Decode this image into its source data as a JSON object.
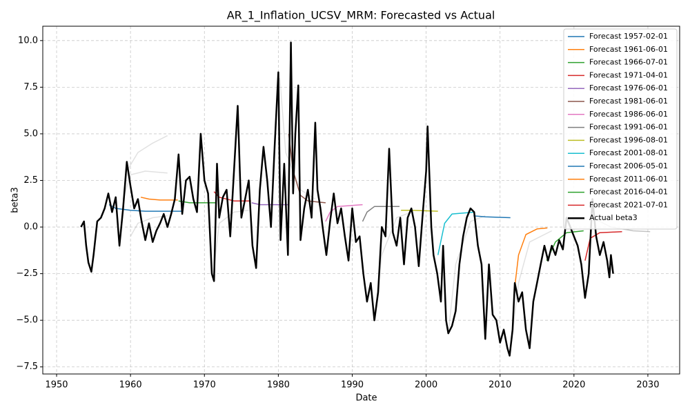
{
  "chart_data": {
    "type": "line",
    "title": "AR_1_Inflation_UCSV_MRM: Forecasted vs Actual",
    "x_label": "Date",
    "y_label": "beta3",
    "xlim": [
      1948.13,
      2034.3
    ],
    "ylim": [
      -7.88,
      10.77
    ],
    "xticks": [
      1950,
      1960,
      1970,
      1980,
      1990,
      2000,
      2010,
      2020,
      2030
    ],
    "yticks": [
      {
        "value": -7.5,
        "label": "−7.5"
      },
      {
        "value": -5,
        "label": "−5.0"
      },
      {
        "value": -2.5,
        "label": "−2.5"
      },
      {
        "value": 0,
        "label": "0.0"
      },
      {
        "value": 2.5,
        "label": "2.5"
      },
      {
        "value": 5,
        "label": "5.0"
      },
      {
        "value": 7.5,
        "label": "7.5"
      },
      {
        "value": 10,
        "label": "10.0"
      }
    ],
    "grid": true,
    "legend_position": "upper right",
    "series": [
      {
        "color": "#aaaaaa",
        "opacity": 0.35,
        "linewidth": 1.5,
        "x": [
          1958.5,
          1959.5,
          1961,
          1963,
          1965
        ],
        "values": [
          -1.2,
          3.0,
          4.0,
          4.5,
          4.9
        ]
      },
      {
        "color": "#aaaaaa",
        "opacity": 0.35,
        "linewidth": 1.5,
        "x": [
          1959,
          1960,
          1962,
          1965
        ],
        "values": [
          1.5,
          2.8,
          3.0,
          2.9
        ]
      },
      {
        "color": "#aaaaaa",
        "opacity": 0.35,
        "linewidth": 1.5,
        "x": [
          1960,
          1961,
          1963,
          1965
        ],
        "values": [
          -0.5,
          0.2,
          0.5,
          0.6
        ]
      },
      {
        "color": "#aaaaaa",
        "opacity": 0.35,
        "linewidth": 1.5,
        "x": [
          1971.2,
          1972,
          1974,
          1976
        ],
        "values": [
          -2.5,
          0.2,
          0.8,
          0.9
        ]
      },
      {
        "color": "#aaaaaa",
        "opacity": 0.35,
        "linewidth": 1.5,
        "x": [
          1980.2,
          1981,
          1983,
          1985
        ],
        "values": [
          8.0,
          4.0,
          2.0,
          1.5
        ]
      },
      {
        "color": "#aaaaaa",
        "opacity": 0.35,
        "linewidth": 1.5,
        "x": [
          1993,
          1994,
          1996,
          1998
        ],
        "values": [
          -5.0,
          -1.5,
          0.5,
          0.8
        ]
      },
      {
        "color": "#aaaaaa",
        "opacity": 0.35,
        "linewidth": 1.5,
        "x": [
          2003,
          2004,
          2006,
          2008
        ],
        "values": [
          -5.7,
          -2.0,
          0.3,
          0.6
        ]
      },
      {
        "color": "#aaaaaa",
        "opacity": 0.35,
        "linewidth": 1.5,
        "x": [
          2011.3,
          2012.5,
          2014,
          2017
        ],
        "values": [
          -6.9,
          -3.0,
          -0.8,
          -0.2
        ]
      },
      {
        "color": "#888888",
        "opacity": 0.5,
        "linewidth": 1.5,
        "x": [
          2022.5,
          2025,
          2028,
          2030.3
        ],
        "values": [
          0.5,
          0.0,
          -0.2,
          -0.25
        ]
      },
      {
        "name": "Forecast 1957-02-01",
        "color": "#1f77b4",
        "linewidth": 1.5,
        "x": [
          1957.1,
          1958,
          1960,
          1962,
          1967
        ],
        "values": [
          1.2,
          1.0,
          0.9,
          0.85,
          0.85
        ]
      },
      {
        "name": "Forecast 1961-06-01",
        "color": "#ff7f0e",
        "linewidth": 1.5,
        "x": [
          1961.4,
          1962.5,
          1964,
          1966.4
        ],
        "values": [
          1.6,
          1.5,
          1.45,
          1.45
        ]
      },
      {
        "name": "Forecast 1966-07-01",
        "color": "#2ca02c",
        "linewidth": 1.5,
        "x": [
          1966.5,
          1968,
          1971.5
        ],
        "values": [
          1.4,
          1.3,
          1.3
        ]
      },
      {
        "name": "Forecast 1971-04-01",
        "color": "#d62728",
        "linewidth": 1.5,
        "x": [
          1971.3,
          1972,
          1974,
          1976.3
        ],
        "values": [
          1.9,
          1.6,
          1.4,
          1.4
        ]
      },
      {
        "name": "Forecast 1976-06-01",
        "color": "#9467bd",
        "linewidth": 1.5,
        "x": [
          1976.4,
          1977.5,
          1981.4
        ],
        "values": [
          1.3,
          1.2,
          1.2
        ]
      },
      {
        "name": "Forecast 1981-06-01",
        "color": "#8c564b",
        "linewidth": 1.5,
        "x": [
          1981.4,
          1982,
          1983,
          1984,
          1986.4
        ],
        "values": [
          5.0,
          3.0,
          1.7,
          1.4,
          1.3
        ]
      },
      {
        "name": "Forecast 1986-06-01",
        "color": "#e377c2",
        "linewidth": 1.5,
        "x": [
          1986.4,
          1987,
          1988,
          1991.4
        ],
        "values": [
          0.3,
          0.8,
          1.1,
          1.2
        ]
      },
      {
        "name": "Forecast 1991-06-01",
        "color": "#7f7f7f",
        "linewidth": 1.5,
        "x": [
          1991.4,
          1992,
          1993,
          1996.4
        ],
        "values": [
          0.3,
          0.8,
          1.1,
          1.1
        ]
      },
      {
        "name": "Forecast 1996-08-01",
        "color": "#bcbd22",
        "linewidth": 1.5,
        "x": [
          1996.6,
          1998,
          2001.6
        ],
        "values": [
          0.9,
          0.9,
          0.85
        ]
      },
      {
        "name": "Forecast 2001-08-01",
        "color": "#17becf",
        "linewidth": 1.5,
        "x": [
          2001.6,
          2002.5,
          2003.5,
          2006.6
        ],
        "values": [
          -1.5,
          0.2,
          0.7,
          0.8
        ]
      },
      {
        "name": "Forecast 2006-05-01",
        "color": "#1f77b4",
        "linewidth": 1.5,
        "x": [
          2006.4,
          2008,
          2011.4
        ],
        "values": [
          0.6,
          0.55,
          0.5
        ]
      },
      {
        "name": "Forecast 2011-06-01",
        "color": "#ff7f0e",
        "linewidth": 1.5,
        "x": [
          2011.9,
          2012.5,
          2013.5,
          2015,
          2016.4
        ],
        "values": [
          -3.5,
          -1.5,
          -0.4,
          -0.1,
          -0.05
        ]
      },
      {
        "name": "Forecast 2016-04-01",
        "color": "#2ca02c",
        "linewidth": 1.5,
        "x": [
          2016.3,
          2017.5,
          2019,
          2021.3
        ],
        "values": [
          -1.8,
          -0.8,
          -0.3,
          -0.2
        ]
      },
      {
        "name": "Forecast 2021-07-01",
        "color": "#d62728",
        "linewidth": 1.5,
        "x": [
          2021.5,
          2022.2,
          2023.5,
          2026.5
        ],
        "values": [
          -1.8,
          -0.6,
          -0.3,
          -0.25
        ]
      },
      {
        "name": "Actual beta3",
        "color": "#000000",
        "linewidth": 2.5,
        "x": [
          1953.3,
          1953.7,
          1954.0,
          1954.3,
          1954.7,
          1955.0,
          1955.5,
          1956.0,
          1956.5,
          1957.0,
          1957.5,
          1958.0,
          1958.5,
          1959.0,
          1959.5,
          1960.0,
          1960.5,
          1961.0,
          1961.5,
          1962.0,
          1962.5,
          1963.0,
          1963.5,
          1964.0,
          1964.5,
          1965.0,
          1965.5,
          1966.0,
          1966.5,
          1967.0,
          1967.5,
          1968.0,
          1968.5,
          1969.0,
          1969.5,
          1970.0,
          1970.5,
          1971.0,
          1971.3,
          1971.7,
          1972.0,
          1972.5,
          1973.0,
          1973.5,
          1974.0,
          1974.5,
          1975.0,
          1975.5,
          1976.0,
          1976.5,
          1977.0,
          1977.5,
          1978.0,
          1978.5,
          1979.0,
          1979.5,
          1980.0,
          1980.3,
          1980.8,
          1981.3,
          1981.7,
          1982.0,
          1982.3,
          1982.7,
          1983.0,
          1983.5,
          1984.0,
          1984.5,
          1985.0,
          1985.3,
          1985.7,
          1986.0,
          1986.5,
          1987.0,
          1987.5,
          1988.0,
          1988.5,
          1989.0,
          1989.5,
          1990.0,
          1990.5,
          1991.0,
          1991.5,
          1992.0,
          1992.5,
          1993.0,
          1993.5,
          1994.0,
          1994.5,
          1995.0,
          1995.5,
          1996.0,
          1996.5,
          1997.0,
          1997.5,
          1998.0,
          1998.5,
          1999.0,
          1999.5,
          2000.0,
          2000.2,
          2000.7,
          2001.0,
          2001.5,
          2002.0,
          2002.3,
          2002.7,
          2003.0,
          2003.5,
          2004.0,
          2004.5,
          2005.0,
          2005.5,
          2006.0,
          2006.5,
          2007.0,
          2007.5,
          2008.0,
          2008.5,
          2009.0,
          2009.5,
          2010.0,
          2010.5,
          2011.0,
          2011.3,
          2011.7,
          2012.0,
          2012.5,
          2013.0,
          2013.5,
          2014.0,
          2014.5,
          2015.0,
          2015.5,
          2016.0,
          2016.5,
          2017.0,
          2017.5,
          2018.0,
          2018.5,
          2019.0,
          2019.5,
          2020.0,
          2020.5,
          2021.0,
          2021.5,
          2022.0,
          2022.5,
          2023.0,
          2023.5,
          2024.0,
          2024.5,
          2024.8,
          2025.0,
          2025.3
        ],
        "values": [
          0,
          0.3,
          -1.0,
          -1.9,
          -2.4,
          -1.5,
          0.3,
          0.5,
          1.0,
          1.8,
          0.8,
          1.6,
          -1.0,
          1.0,
          3.5,
          2.2,
          1.0,
          1.5,
          0.3,
          -0.7,
          0.2,
          -0.8,
          -0.2,
          0.2,
          0.7,
          0,
          0.7,
          1.5,
          3.9,
          0.7,
          2.5,
          2.7,
          1.5,
          0.8,
          5.0,
          2.5,
          1.8,
          -2.5,
          -2.9,
          3.4,
          0.5,
          1.6,
          2.0,
          -0.5,
          3.0,
          6.5,
          0.5,
          1.5,
          2.5,
          -1.0,
          -2.2,
          2.0,
          4.3,
          2.5,
          0,
          4.3,
          8.3,
          -0.7,
          3.4,
          -1.5,
          9.9,
          1.8,
          5.0,
          7.6,
          -0.7,
          1.0,
          2.0,
          0.5,
          5.6,
          2.0,
          1.0,
          0,
          -1.5,
          0.3,
          1.8,
          0.2,
          1.0,
          -0.5,
          -1.8,
          1.0,
          -0.8,
          -0.5,
          -2.5,
          -4.0,
          -3.0,
          -5.0,
          -3.5,
          0,
          -0.5,
          4.2,
          -0.3,
          -1.0,
          0.5,
          -2.0,
          0.5,
          1.0,
          0,
          -2.1,
          0.5,
          3.0,
          5.4,
          0,
          -1.5,
          -2.5,
          -4.0,
          -1.0,
          -5.0,
          -5.7,
          -5.3,
          -4.5,
          -2.0,
          -0.5,
          0.5,
          1.0,
          0.8,
          -1.0,
          -2.0,
          -6.0,
          -2.0,
          -4.7,
          -5.0,
          -6.2,
          -5.5,
          -6.5,
          -6.9,
          -5.5,
          -3.0,
          -4.0,
          -3.5,
          -5.5,
          -6.5,
          -4.0,
          -3.0,
          -2.0,
          -1.0,
          -1.8,
          -1.0,
          -1.5,
          -0.7,
          -1.2,
          0.5,
          0,
          -0.5,
          -1.0,
          -2.0,
          -3.8,
          -2.5,
          1.5,
          -0.5,
          -1.5,
          -0.8,
          -1.8,
          -2.7,
          -1.5,
          -2.5
        ]
      }
    ]
  }
}
